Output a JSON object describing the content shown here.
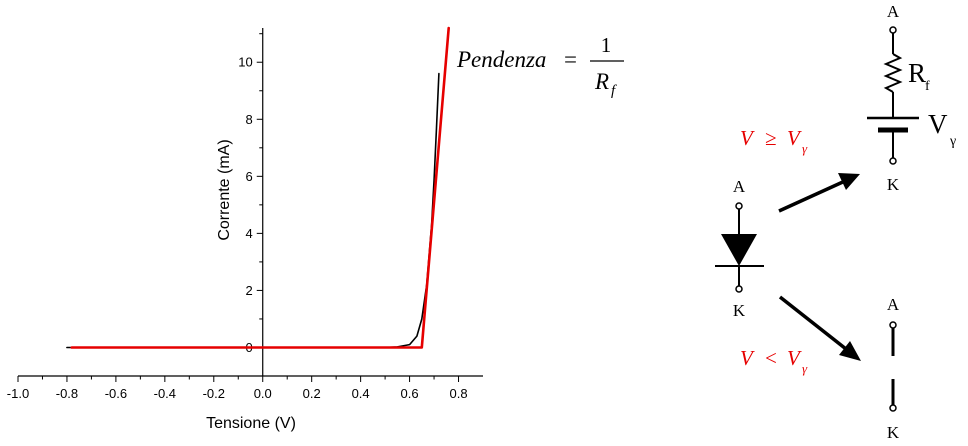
{
  "chart_data": {
    "type": "line",
    "title": "",
    "xlabel": "Tensione (V)",
    "ylabel": "Corrente (mA)",
    "xlim": [
      -1.0,
      0.9
    ],
    "ylim": [
      -1.0,
      11.2
    ],
    "x_ticks": [
      -1.0,
      -0.8,
      -0.6,
      -0.4,
      -0.2,
      0.0,
      0.2,
      0.4,
      0.6,
      0.8
    ],
    "x_tick_labels": [
      "-1.0",
      "-0.8",
      "-0.6",
      "-0.4",
      "-0.2",
      "0.0",
      "0.2",
      "0.4",
      "0.6",
      "0.8"
    ],
    "y_ticks": [
      0,
      2,
      4,
      6,
      8,
      10
    ],
    "y_tick_labels": [
      "0",
      "2",
      "4",
      "6",
      "8",
      "10"
    ],
    "grid": false,
    "series": [
      {
        "color": "#000000",
        "x": [
          -0.8,
          -0.4,
          0.0,
          0.3,
          0.5,
          0.55,
          0.6,
          0.63,
          0.65,
          0.67,
          0.69,
          0.7,
          0.71,
          0.72
        ],
        "y": [
          0,
          0,
          0,
          0,
          0,
          0.02,
          0.1,
          0.4,
          1.0,
          2.2,
          4.3,
          5.9,
          7.7,
          9.6
        ]
      },
      {
        "color": "#e60000",
        "x": [
          -0.78,
          0.65,
          0.76
        ],
        "y": [
          0,
          0,
          11.2
        ]
      }
    ]
  },
  "annotation": {
    "slope_word": "Pendenza",
    "equals": "=",
    "numerator": "1",
    "denominator_main": "R",
    "denominator_sub": "f"
  },
  "circuit": {
    "anode_label": "A",
    "cathode_label": "K",
    "resistor_main": "R",
    "resistor_sub": "f",
    "source_main": "V",
    "source_sub": "γ",
    "condition_on_lhs": "V",
    "condition_on_op": "≥",
    "condition_on_rhs": "V",
    "condition_on_sub": "γ",
    "condition_off_lhs": "V",
    "condition_off_op": "<",
    "condition_off_rhs": "V",
    "condition_off_sub": "γ"
  },
  "colors": {
    "accent": "#e60000",
    "ink": "#000000"
  }
}
